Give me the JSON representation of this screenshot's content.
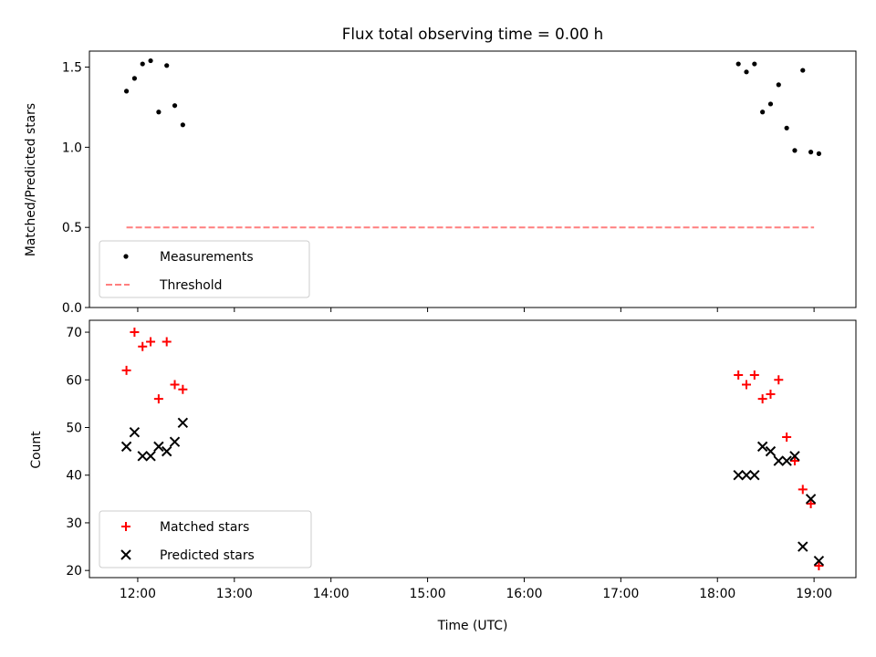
{
  "chart_data": [
    {
      "type": "scatter",
      "title": "Flux total observing time = 0.00 h",
      "xlabel": "",
      "ylabel": "Matched/Predicted stars",
      "xlim": [
        "11:30",
        "19:26"
      ],
      "ylim": [
        0.0,
        1.6
      ],
      "yticks": [
        0.0,
        0.5,
        1.0,
        1.5
      ],
      "ytick_labels": [
        "0.0",
        "0.5",
        "1.0",
        "1.5"
      ],
      "x_ticks": [
        "12:00",
        "13:00",
        "14:00",
        "15:00",
        "16:00",
        "17:00",
        "18:00",
        "19:00"
      ],
      "show_x_tick_labels": false,
      "grid": false,
      "legend": "lower-left",
      "series": [
        {
          "name": "Measurements",
          "kind": "scatter",
          "marker": "dot",
          "color": "#000000",
          "points": [
            [
              "11:53",
              1.35
            ],
            [
              "11:58",
              1.43
            ],
            [
              "12:03",
              1.52
            ],
            [
              "12:08",
              1.54
            ],
            [
              "12:13",
              1.22
            ],
            [
              "12:18",
              1.51
            ],
            [
              "12:23",
              1.26
            ],
            [
              "12:28",
              1.14
            ],
            [
              "18:13",
              1.52
            ],
            [
              "18:18",
              1.47
            ],
            [
              "18:23",
              1.52
            ],
            [
              "18:28",
              1.22
            ],
            [
              "18:33",
              1.27
            ],
            [
              "18:38",
              1.39
            ],
            [
              "18:43",
              1.12
            ],
            [
              "18:48",
              0.98
            ],
            [
              "18:53",
              1.48
            ],
            [
              "18:58",
              0.97
            ],
            [
              "19:03",
              0.96
            ]
          ]
        },
        {
          "name": "Threshold",
          "kind": "line",
          "style": "dashed",
          "color": "#ff7f7f",
          "points": [
            [
              "11:53",
              0.5
            ],
            [
              "19:00",
              0.5
            ]
          ]
        }
      ]
    },
    {
      "type": "scatter",
      "title": "",
      "xlabel": "Time (UTC)",
      "ylabel": "Count",
      "xlim": [
        "11:30",
        "19:26"
      ],
      "ylim": [
        18.5,
        72.5
      ],
      "yticks": [
        20,
        30,
        40,
        50,
        60,
        70
      ],
      "ytick_labels": [
        "20",
        "30",
        "40",
        "50",
        "60",
        "70"
      ],
      "x_ticks": [
        "12:00",
        "13:00",
        "14:00",
        "15:00",
        "16:00",
        "17:00",
        "18:00",
        "19:00"
      ],
      "show_x_tick_labels": true,
      "grid": false,
      "legend": "lower-left",
      "series": [
        {
          "name": "Matched stars",
          "kind": "scatter",
          "marker": "plus",
          "color": "#ff0000",
          "points": [
            [
              "11:53",
              62
            ],
            [
              "11:58",
              70
            ],
            [
              "12:03",
              67
            ],
            [
              "12:08",
              68
            ],
            [
              "12:13",
              56
            ],
            [
              "12:18",
              68
            ],
            [
              "12:23",
              59
            ],
            [
              "12:28",
              58
            ],
            [
              "18:13",
              61
            ],
            [
              "18:18",
              59
            ],
            [
              "18:23",
              61
            ],
            [
              "18:28",
              56
            ],
            [
              "18:33",
              57
            ],
            [
              "18:38",
              60
            ],
            [
              "18:43",
              48
            ],
            [
              "18:48",
              43
            ],
            [
              "18:53",
              37
            ],
            [
              "18:58",
              34
            ],
            [
              "19:03",
              21
            ]
          ]
        },
        {
          "name": "Predicted stars",
          "kind": "scatter",
          "marker": "x",
          "color": "#000000",
          "points": [
            [
              "11:53",
              46
            ],
            [
              "11:58",
              49
            ],
            [
              "12:03",
              44
            ],
            [
              "12:08",
              44
            ],
            [
              "12:13",
              46
            ],
            [
              "12:18",
              45
            ],
            [
              "12:23",
              47
            ],
            [
              "12:28",
              51
            ],
            [
              "18:13",
              40
            ],
            [
              "18:18",
              40
            ],
            [
              "18:23",
              40
            ],
            [
              "18:28",
              46
            ],
            [
              "18:33",
              45
            ],
            [
              "18:38",
              43
            ],
            [
              "18:43",
              43
            ],
            [
              "18:48",
              44
            ],
            [
              "18:53",
              25
            ],
            [
              "18:58",
              35
            ],
            [
              "19:03",
              22
            ]
          ]
        }
      ]
    }
  ]
}
